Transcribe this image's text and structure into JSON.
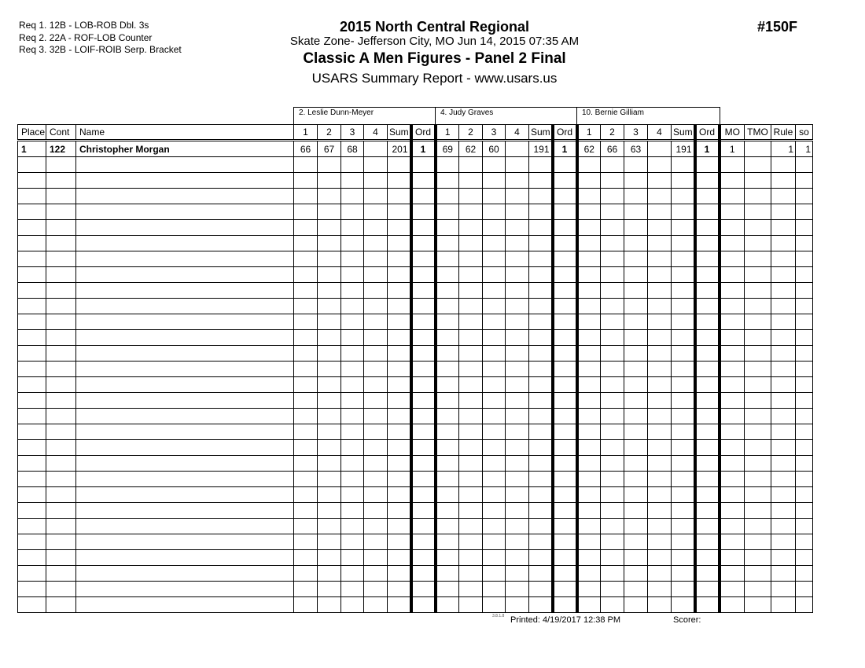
{
  "requirements": [
    "Req  1.  12B - LOB-ROB Dbl. 3s",
    "Req  2.  22A - ROF-LOB Counter",
    "Req  3.  32B - LOIF-ROIB Serp. Bracket"
  ],
  "header": {
    "title": "2015 North Central Regional",
    "location": "Skate Zone- Jefferson City, MO  Jun 14, 2015  07:35 AM",
    "event": "Classic A Men Figures - Panel 2 Final",
    "report": "USARS Summary Report - www.usars.us",
    "event_number": "#150F"
  },
  "judges": [
    "2.  Leslie Dunn-Meyer",
    "4.  Judy  Graves",
    "10.  Bernie Gilliam"
  ],
  "columns": {
    "place": "Place",
    "cont": "Cont",
    "name": "Name",
    "judge_cols": [
      "1",
      "2",
      "3",
      "4",
      "Sum",
      "Ord"
    ],
    "mo": "MO",
    "tmo": "TMO",
    "rule": "Rule",
    "so": "so"
  },
  "rows": [
    {
      "place": "1",
      "cont": "122",
      "name": "Christopher Morgan",
      "judges": [
        [
          "66",
          "67",
          "68",
          "",
          "201",
          "1"
        ],
        [
          "69",
          "62",
          "60",
          "",
          "191",
          "1"
        ],
        [
          "62",
          "66",
          "63",
          "",
          "191",
          "1"
        ]
      ],
      "mo": "1",
      "tmo": "",
      "rule": "1",
      "so": "1"
    }
  ],
  "empty_rows": 29,
  "footer": {
    "version": "3.8.1.8",
    "printed": "Printed:  4/19/2017  12:38 PM",
    "scorer": "Scorer:"
  }
}
